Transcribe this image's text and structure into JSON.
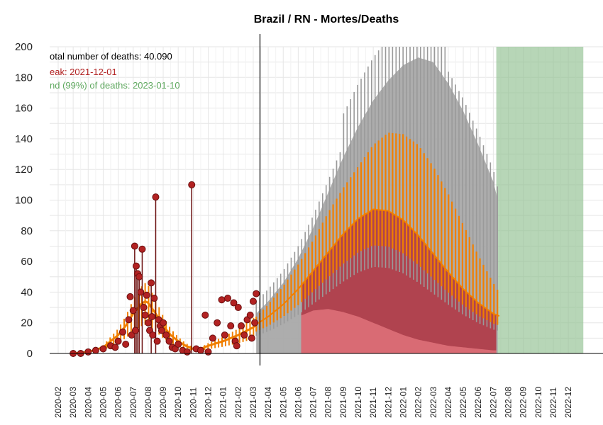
{
  "chart_data": {
    "type": "line",
    "title": "Brazil / RN - Mortes/Deaths",
    "ylim": [
      0,
      200
    ],
    "yticks": [
      "0",
      "20",
      "40",
      "60",
      "80",
      "100",
      "120",
      "140",
      "160",
      "180",
      "200"
    ],
    "xticks": [
      "2020-02",
      "2020-03",
      "2020-04",
      "2020-05",
      "2020-06",
      "2020-07",
      "2020-08",
      "2020-09",
      "2020-10",
      "2020-11",
      "2020-12",
      "2021-01",
      "2021-02",
      "2021-03",
      "2021-04",
      "2021-05",
      "2021-06",
      "2021-07",
      "2021-08",
      "2021-09",
      "2021-10",
      "2021-11",
      "2021-12",
      "2022-01",
      "2022-02",
      "2022-03",
      "2022-04",
      "2022-05",
      "2022-06",
      "2022-07",
      "2022-08",
      "2022-09",
      "2022-10",
      "2022-11",
      "2022-12"
    ],
    "x_start": "2020-02",
    "today": "2021-03",
    "grid": true,
    "annotations": {
      "total": "otal number of deaths: 40.090",
      "peak": "eak: 2021-12-01",
      "end": "nd (99%) of deaths: 2023-01-10"
    },
    "colors": {
      "observed": "#b22222",
      "observed_dark": "#6b0f0f",
      "model": "#f07f00",
      "projection_gray": "#a9a9a9",
      "projection_red": "#b0303e",
      "projection_pink": "#de7078",
      "end_green": "#90c090",
      "peak_text": "#b22222",
      "end_text": "#5ea85e",
      "grid": "#e6e6e6"
    },
    "series": [
      {
        "kind": "observed_points",
        "x_month": [
          1.0,
          1.5,
          2.0,
          2.5,
          3.0,
          3.5,
          3.8,
          4.0,
          4.3,
          4.5,
          4.7,
          4.8,
          4.9,
          5.0,
          5.1,
          5.15,
          5.2,
          5.3,
          5.4,
          5.5,
          5.6,
          5.7,
          5.8,
          5.9,
          6.0,
          6.1,
          6.2,
          6.25,
          6.3,
          6.4,
          6.5,
          6.6,
          6.7,
          6.8,
          6.9,
          7.0,
          7.2,
          7.4,
          7.6,
          7.8,
          8.0,
          8.3,
          8.6,
          8.9,
          9.2,
          9.5,
          9.8,
          10.0,
          10.3,
          10.6,
          10.9,
          11.1,
          11.3,
          11.5,
          11.7,
          11.8,
          11.9,
          12.0,
          12.2,
          12.4,
          12.6,
          12.8,
          12.9,
          13.0,
          13.1,
          13.2
        ],
        "values": [
          0,
          0,
          1,
          2,
          3,
          5,
          4,
          8,
          14,
          6,
          22,
          37,
          12,
          28,
          70,
          15,
          57,
          52,
          50,
          40,
          68,
          30,
          25,
          38,
          20,
          15,
          46,
          24,
          12,
          36,
          102,
          8,
          22,
          18,
          15,
          20,
          12,
          8,
          4,
          3,
          6,
          2,
          1,
          110,
          3,
          2,
          25,
          1,
          10,
          20,
          35,
          12,
          36,
          18,
          33,
          8,
          5,
          30,
          18,
          12,
          22,
          25,
          10,
          34,
          20,
          39
        ]
      },
      {
        "kind": "model_fit_curve",
        "x_month": [
          1.0,
          2.0,
          3.0,
          4.0,
          4.5,
          5.0,
          5.5,
          5.8,
          6.0,
          6.5,
          7.0,
          7.5,
          8.0,
          8.5,
          9.0,
          9.5,
          10.0,
          11.0,
          12.0,
          13.0,
          13.2
        ],
        "values": [
          0,
          1,
          4,
          12,
          18,
          26,
          32,
          34,
          33,
          26,
          18,
          12,
          8,
          5,
          3,
          3,
          5,
          8,
          12,
          17,
          19
        ]
      },
      {
        "kind": "projection_mean",
        "x_month": [
          13.2,
          14.0,
          15.0,
          16.0,
          17.0,
          18.0,
          19.0,
          20.0,
          21.0,
          22.0,
          23.0,
          24.0,
          25.0,
          26.0,
          27.0,
          28.0,
          29.0,
          29.5
        ],
        "values": [
          19,
          24,
          32,
          42,
          54,
          66,
          78,
          88,
          94,
          93,
          87,
          77,
          65,
          53,
          42,
          33,
          26,
          24
        ]
      },
      {
        "kind": "projection_upper",
        "x_month": [
          13.2,
          14.0,
          15.0,
          16.0,
          17.0,
          18.0,
          19.0,
          20.0,
          21.0,
          22.0,
          23.0,
          24.0,
          25.0,
          26.0,
          27.0,
          28.0,
          29.0,
          29.5
        ],
        "values": [
          24,
          32,
          44,
          58,
          74,
          92,
          108,
          122,
          136,
          144,
          143,
          136,
          122,
          104,
          84,
          64,
          46,
          38
        ]
      },
      {
        "kind": "projection_high",
        "x_month": [
          13.2,
          14.0,
          15.0,
          16.0,
          17.0,
          18.0,
          19.0,
          20.0,
          21.0,
          22.0,
          23.0,
          24.0,
          25.0,
          26.0,
          27.0,
          28.0,
          29.0,
          29.3
        ],
        "values": [
          26,
          34,
          46,
          62,
          82,
          105,
          128,
          148,
          165,
          178,
          188,
          193,
          190,
          176,
          158,
          136,
          112,
          100
        ]
      },
      {
        "kind": "projection_low",
        "x_month": [
          16.0,
          17.0,
          18.0,
          19.0,
          20.0,
          21.0,
          22.0,
          23.0,
          24.0,
          25.0,
          26.0,
          27.0,
          28.0,
          29.0
        ],
        "values": [
          24,
          28,
          29,
          27,
          24,
          20,
          16,
          12,
          9,
          7,
          5,
          4,
          3,
          2
        ]
      }
    ]
  }
}
